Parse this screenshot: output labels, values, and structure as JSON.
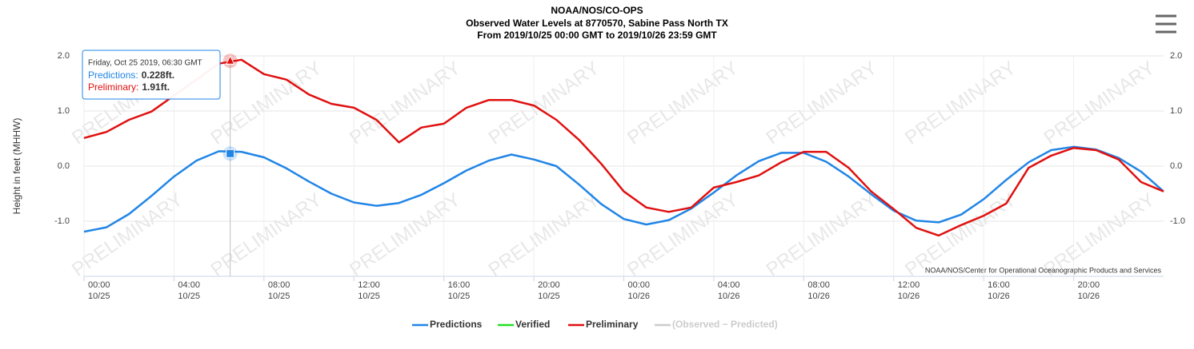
{
  "chart_data": {
    "type": "line",
    "title": "NOAA/NOS/CO-OPS",
    "subtitle": "Observed Water Levels at 8770570, Sabine Pass North TX",
    "subtitle2": "From 2019/10/25 00:00 GMT to 2019/10/26 23:59 GMT",
    "ylabel": "Height in feet (MHHW)",
    "watermark": "PRELIMINARY",
    "credits": "NOAA/NOS/Center for Operational Oceanographic Products and Services",
    "xlim": [
      0,
      48
    ],
    "ylim": [
      -2,
      2
    ],
    "grid": true,
    "yticks": [
      {
        "value": -1,
        "label": "-1.0"
      },
      {
        "value": 0,
        "label": "0.0"
      },
      {
        "value": 1,
        "label": "1.0"
      },
      {
        "value": 2,
        "label": "2.0"
      }
    ],
    "xticks": [
      {
        "value": 0,
        "label": "00:00"
      },
      {
        "value": 4,
        "label": "04:00"
      },
      {
        "value": 8,
        "label": "08:00"
      },
      {
        "value": 12,
        "label": "12:00"
      },
      {
        "value": 16,
        "label": "16:00"
      },
      {
        "value": 20,
        "label": "20:00"
      },
      {
        "value": 24,
        "label": "00:00"
      },
      {
        "value": 28,
        "label": "04:00"
      },
      {
        "value": 32,
        "label": "08:00"
      },
      {
        "value": 36,
        "label": "12:00"
      },
      {
        "value": 40,
        "label": "16:00"
      },
      {
        "value": 44,
        "label": "20:00"
      }
    ],
    "xtick_dates": [
      "10/25",
      "10/25",
      "10/25",
      "10/25",
      "10/25",
      "10/25",
      "10/26",
      "10/26",
      "10/26",
      "10/26",
      "10/26",
      "10/26"
    ],
    "series": [
      {
        "name": "Predictions",
        "color": "#2185e6",
        "x": [
          0,
          1,
          2,
          3,
          4,
          5,
          6,
          7,
          8,
          9,
          10,
          11,
          12,
          13,
          14,
          15,
          16,
          17,
          18,
          19,
          20,
          21,
          22,
          23,
          24,
          25,
          26,
          27,
          28,
          29,
          30,
          31,
          32,
          33,
          34,
          35,
          36,
          37,
          38,
          39,
          40,
          41,
          42,
          43,
          44,
          45,
          46,
          47,
          48
        ],
        "values": [
          -1.19,
          -1.11,
          -0.87,
          -0.54,
          -0.19,
          0.1,
          0.27,
          0.26,
          0.16,
          -0.04,
          -0.28,
          -0.5,
          -0.66,
          -0.72,
          -0.67,
          -0.52,
          -0.31,
          -0.08,
          0.1,
          0.21,
          0.12,
          0.0,
          -0.33,
          -0.69,
          -0.96,
          -1.06,
          -0.98,
          -0.77,
          -0.48,
          -0.17,
          0.09,
          0.24,
          0.24,
          0.08,
          -0.19,
          -0.51,
          -0.81,
          -0.99,
          -1.02,
          -0.88,
          -0.6,
          -0.25,
          0.07,
          0.29,
          0.35,
          0.3,
          0.15,
          -0.1,
          -0.46
        ]
      },
      {
        "name": "Verified",
        "color": "#22e022",
        "x": [],
        "values": []
      },
      {
        "name": "Preliminary",
        "color": "#e01010",
        "x": [
          0,
          1,
          2,
          3,
          4,
          5,
          6,
          7,
          8,
          9,
          10,
          11,
          12,
          13,
          14,
          15,
          16,
          17,
          18,
          19,
          20,
          21,
          22,
          23,
          24,
          25,
          26,
          27,
          28,
          29,
          30,
          31,
          32,
          33,
          34,
          35,
          36,
          37,
          38,
          39,
          40,
          41,
          42,
          43,
          44,
          45,
          46,
          47,
          48
        ],
        "values": [
          0.51,
          0.62,
          0.84,
          0.99,
          1.28,
          1.57,
          1.86,
          1.93,
          1.67,
          1.57,
          1.3,
          1.13,
          1.06,
          0.84,
          0.43,
          0.7,
          0.77,
          1.06,
          1.2,
          1.2,
          1.1,
          0.84,
          0.48,
          0.04,
          -0.46,
          -0.75,
          -0.83,
          -0.75,
          -0.39,
          -0.29,
          -0.17,
          0.07,
          0.26,
          0.26,
          -0.03,
          -0.46,
          -0.78,
          -1.12,
          -1.26,
          -1.07,
          -0.9,
          -0.68,
          -0.03,
          0.19,
          0.33,
          0.29,
          0.12,
          -0.29,
          -0.46
        ]
      },
      {
        "name": "(Observed − Predicted)",
        "color": "#cccccc",
        "visible": false,
        "x": [],
        "values": []
      }
    ],
    "tooltip": {
      "x": 6.5,
      "header": "Friday, Oct 25 2019, 06:30 GMT",
      "points": [
        {
          "series": 0,
          "text": "Predictions:",
          "value": 0.228,
          "label": "0.228ft."
        },
        {
          "series": 2,
          "text": "Preliminary:",
          "value": 1.91,
          "label": "1.91ft."
        }
      ]
    }
  }
}
